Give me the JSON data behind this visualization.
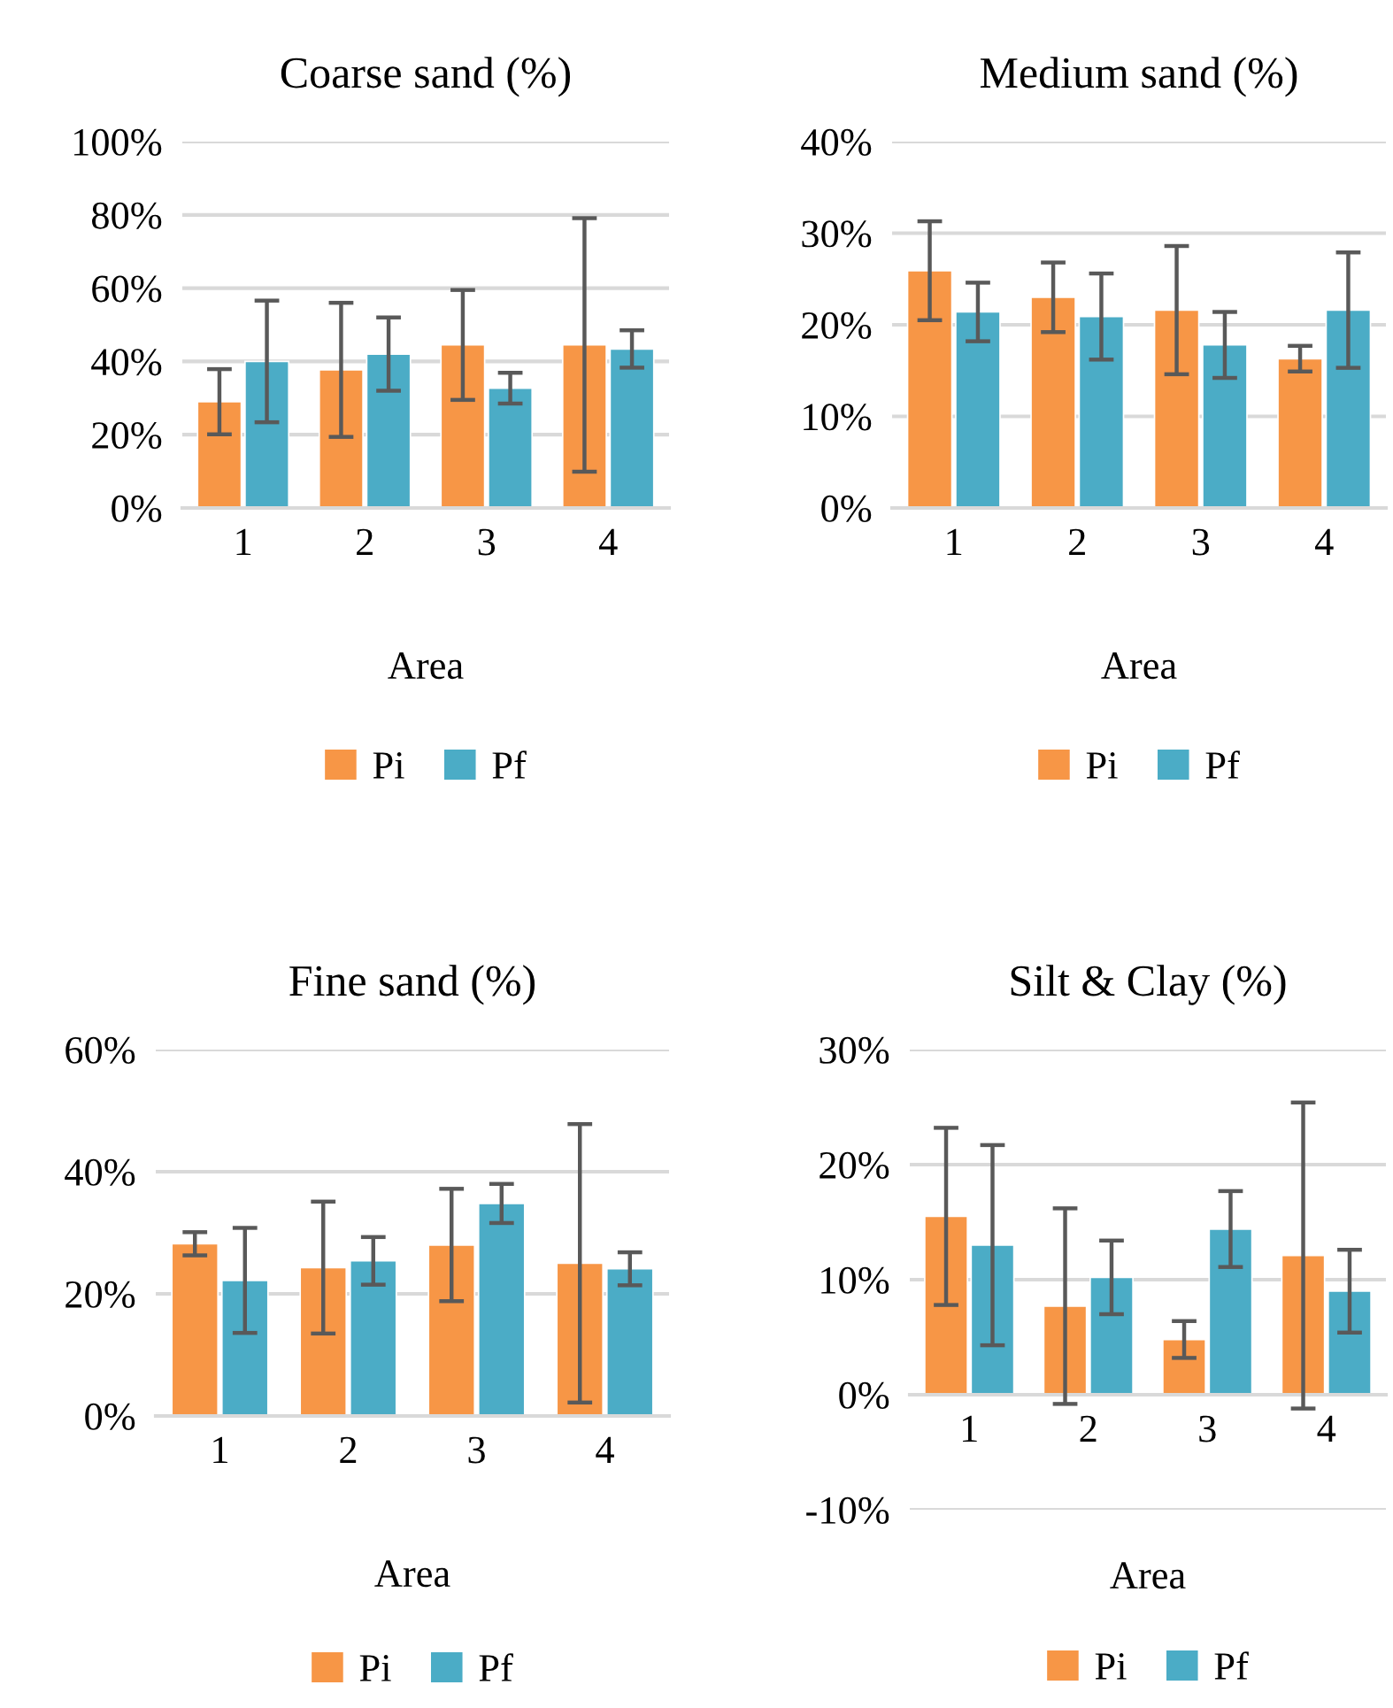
{
  "chart_data": [
    {
      "type": "bar",
      "title": "Coarse sand (%)",
      "xlabel": "Area",
      "categories": [
        "1",
        "2",
        "3",
        "4"
      ],
      "series": [
        {
          "name": "Pi",
          "color": "#f79646",
          "values": [
            29,
            37.7,
            44.5,
            44.5
          ],
          "errors": [
            8.9,
            18.3,
            15,
            34.6
          ]
        },
        {
          "name": "Pf",
          "color": "#4bacc6",
          "values": [
            40,
            42,
            32.7,
            43.4
          ],
          "errors": [
            16.6,
            10,
            4.2,
            5.1
          ]
        }
      ],
      "ylim": [
        0,
        100
      ],
      "yticks": [
        {
          "value": 0,
          "label": "0%"
        },
        {
          "value": 20,
          "label": "20%"
        },
        {
          "value": 40,
          "label": "40%"
        },
        {
          "value": 60,
          "label": "60%"
        },
        {
          "value": 80,
          "label": "80%"
        },
        {
          "value": 100,
          "label": "100%"
        }
      ],
      "grid": "y",
      "legend": "bottom"
    },
    {
      "type": "bar",
      "title": "Medium sand (%)",
      "xlabel": "Area",
      "categories": [
        "1",
        "2",
        "3",
        "4"
      ],
      "series": [
        {
          "name": "Pi",
          "color": "#f79646",
          "values": [
            25.9,
            23.0,
            21.6,
            16.3
          ],
          "errors": [
            5.4,
            3.8,
            7.0,
            1.4
          ]
        },
        {
          "name": "Pf",
          "color": "#4bacc6",
          "values": [
            21.4,
            20.9,
            17.8,
            21.6
          ],
          "errors": [
            3.2,
            4.7,
            3.6,
            6.3
          ]
        }
      ],
      "ylim": [
        0,
        40
      ],
      "yticks": [
        {
          "value": 0,
          "label": "0%"
        },
        {
          "value": 10,
          "label": "10%"
        },
        {
          "value": 20,
          "label": "20%"
        },
        {
          "value": 30,
          "label": "30%"
        },
        {
          "value": 40,
          "label": "40%"
        }
      ],
      "grid": "y",
      "legend": "bottom"
    },
    {
      "type": "bar",
      "title": "Fine sand (%)",
      "xlabel": "Area",
      "categories": [
        "1",
        "2",
        "3",
        "4"
      ],
      "series": [
        {
          "name": "Pi",
          "color": "#f79646",
          "values": [
            28.2,
            24.3,
            28.0,
            25.0
          ],
          "errors": [
            1.9,
            10.8,
            9.2,
            22.8
          ]
        },
        {
          "name": "Pf",
          "color": "#4bacc6",
          "values": [
            22.2,
            25.4,
            34.8,
            24.1
          ],
          "errors": [
            8.6,
            3.9,
            3.2,
            2.7
          ]
        }
      ],
      "ylim": [
        0,
        60
      ],
      "yticks": [
        {
          "value": 0,
          "label": "0%"
        },
        {
          "value": 20,
          "label": "20%"
        },
        {
          "value": 40,
          "label": "40%"
        },
        {
          "value": 60,
          "label": "60%"
        }
      ],
      "grid": "y",
      "legend": "bottom"
    },
    {
      "type": "bar",
      "title": "Silt & Clay (%)",
      "xlabel": "Area",
      "categories": [
        "1",
        "2",
        "3",
        "4"
      ],
      "series": [
        {
          "name": "Pi",
          "color": "#f79646",
          "values": [
            15.5,
            7.7,
            4.8,
            12.1
          ],
          "errors": [
            7.7,
            8.5,
            1.6,
            13.3
          ]
        },
        {
          "name": "Pf",
          "color": "#4bacc6",
          "values": [
            13.0,
            10.2,
            14.4,
            9.0
          ],
          "errors": [
            8.7,
            3.2,
            3.3,
            3.6
          ]
        }
      ],
      "ylim": [
        -10,
        30
      ],
      "yticks": [
        {
          "value": -10,
          "label": "-10%"
        },
        {
          "value": 0,
          "label": "0%"
        },
        {
          "value": 10,
          "label": "10%"
        },
        {
          "value": 20,
          "label": "20%"
        },
        {
          "value": 30,
          "label": "30%"
        }
      ],
      "grid": "y",
      "legend": "bottom"
    }
  ]
}
